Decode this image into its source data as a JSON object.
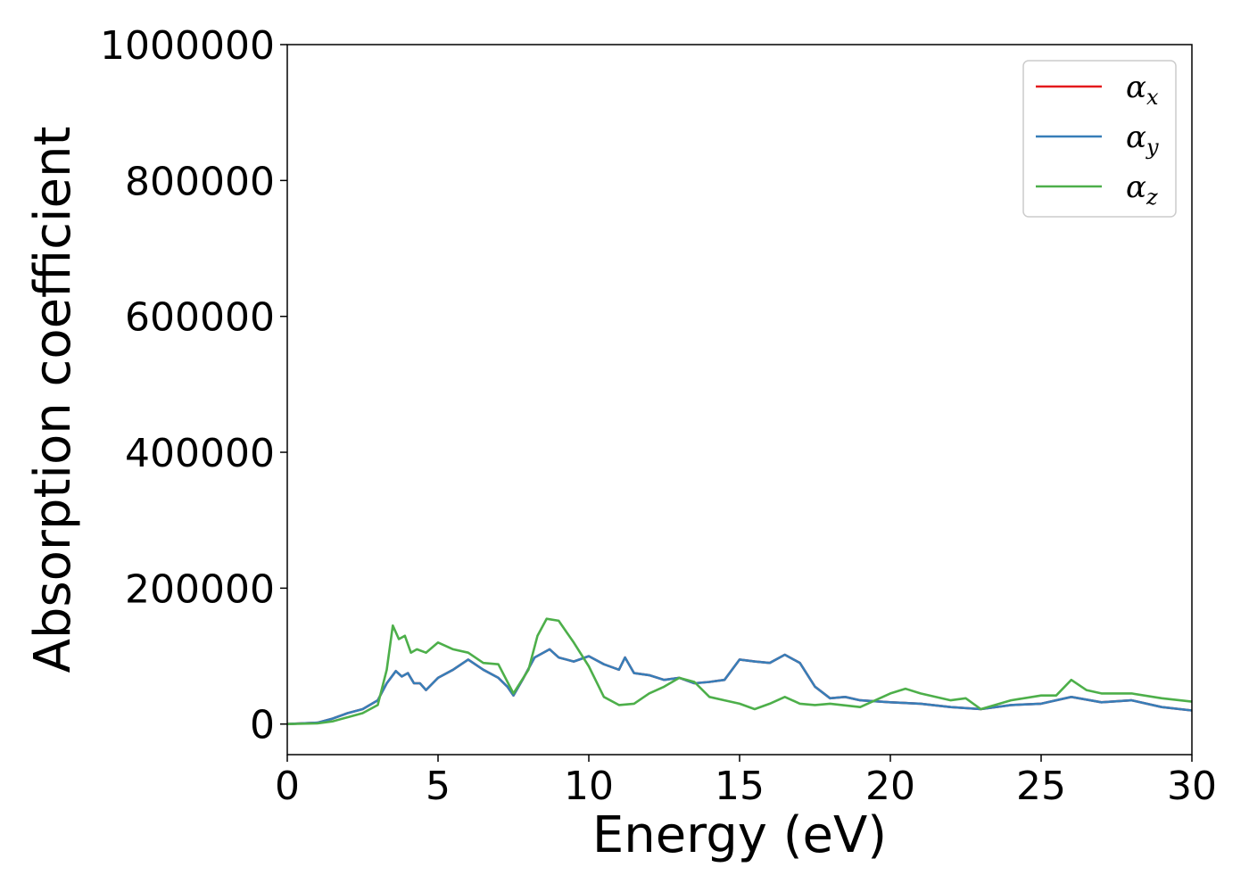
{
  "chart_data": {
    "type": "line",
    "xlabel": "Energy (eV)",
    "ylabel": "Absorption coefficient",
    "xlim": [
      0,
      30
    ],
    "ylim": [
      -45000,
      1000000
    ],
    "x_ticks": [
      0,
      5,
      10,
      15,
      20,
      25,
      30
    ],
    "y_ticks": [
      0,
      200000,
      400000,
      600000,
      800000,
      1000000
    ],
    "grid": false,
    "legend_position": "top-right",
    "series": [
      {
        "name": "α",
        "subscript": "x",
        "color": "#e41a1c",
        "x": [
          0,
          1,
          1.5,
          2,
          2.5,
          3,
          3.3,
          3.6,
          3.8,
          4,
          4.2,
          4.4,
          4.6,
          5,
          5.5,
          6,
          6.5,
          7,
          7.3,
          7.5,
          7.8,
          8.2,
          8.7,
          9,
          9.5,
          10,
          10.5,
          11,
          11.2,
          11.5,
          12,
          12.5,
          13,
          13.5,
          14,
          14.5,
          15,
          15.5,
          16,
          16.5,
          17,
          17.5,
          18,
          18.5,
          19,
          20,
          21,
          22,
          23,
          24,
          25,
          26,
          27,
          28,
          29,
          30
        ],
        "y": [
          0,
          2000,
          8000,
          16000,
          22000,
          35000,
          60000,
          78000,
          70000,
          75000,
          60000,
          60000,
          50000,
          68000,
          80000,
          95000,
          80000,
          68000,
          55000,
          42000,
          65000,
          98000,
          110000,
          98000,
          92000,
          100000,
          88000,
          80000,
          98000,
          75000,
          72000,
          65000,
          68000,
          60000,
          62000,
          65000,
          95000,
          92000,
          90000,
          102000,
          90000,
          55000,
          38000,
          40000,
          35000,
          32000,
          30000,
          25000,
          22000,
          28000,
          30000,
          40000,
          32000,
          35000,
          25000,
          20000
        ]
      },
      {
        "name": "α",
        "subscript": "y",
        "color": "#377eb8",
        "x": [
          0,
          1,
          1.5,
          2,
          2.5,
          3,
          3.3,
          3.6,
          3.8,
          4,
          4.2,
          4.4,
          4.6,
          5,
          5.5,
          6,
          6.5,
          7,
          7.3,
          7.5,
          7.8,
          8.2,
          8.7,
          9,
          9.5,
          10,
          10.5,
          11,
          11.2,
          11.5,
          12,
          12.5,
          13,
          13.5,
          14,
          14.5,
          15,
          15.5,
          16,
          16.5,
          17,
          17.5,
          18,
          18.5,
          19,
          20,
          21,
          22,
          23,
          24,
          25,
          26,
          27,
          28,
          29,
          30
        ],
        "y": [
          0,
          2000,
          8000,
          16000,
          22000,
          35000,
          60000,
          78000,
          70000,
          75000,
          60000,
          60000,
          50000,
          68000,
          80000,
          95000,
          80000,
          68000,
          55000,
          42000,
          65000,
          98000,
          110000,
          98000,
          92000,
          100000,
          88000,
          80000,
          98000,
          75000,
          72000,
          65000,
          68000,
          60000,
          62000,
          65000,
          95000,
          92000,
          90000,
          102000,
          90000,
          55000,
          38000,
          40000,
          35000,
          32000,
          30000,
          25000,
          22000,
          28000,
          30000,
          40000,
          32000,
          35000,
          25000,
          20000
        ]
      },
      {
        "name": "α",
        "subscript": "z",
        "color": "#4daf4a",
        "x": [
          0,
          1,
          1.5,
          2,
          2.5,
          3,
          3.3,
          3.5,
          3.7,
          3.9,
          4.1,
          4.3,
          4.6,
          5,
          5.5,
          6,
          6.5,
          7,
          7.5,
          8,
          8.3,
          8.6,
          9,
          9.5,
          10,
          10.5,
          11,
          11.5,
          12,
          12.5,
          13,
          13.5,
          14,
          14.5,
          15,
          15.5,
          16,
          16.5,
          17,
          17.5,
          18,
          19,
          20,
          20.5,
          21,
          22,
          22.5,
          23,
          24,
          25,
          25.5,
          26,
          26.5,
          27,
          28,
          29,
          30
        ],
        "y": [
          0,
          1000,
          4000,
          10000,
          16000,
          28000,
          80000,
          145000,
          125000,
          130000,
          105000,
          110000,
          105000,
          120000,
          110000,
          105000,
          90000,
          88000,
          45000,
          80000,
          130000,
          155000,
          152000,
          120000,
          85000,
          40000,
          28000,
          30000,
          45000,
          55000,
          68000,
          62000,
          40000,
          35000,
          30000,
          22000,
          30000,
          40000,
          30000,
          28000,
          30000,
          25000,
          45000,
          52000,
          45000,
          35000,
          38000,
          22000,
          35000,
          42000,
          42000,
          65000,
          50000,
          45000,
          45000,
          38000,
          33000
        ]
      }
    ]
  }
}
